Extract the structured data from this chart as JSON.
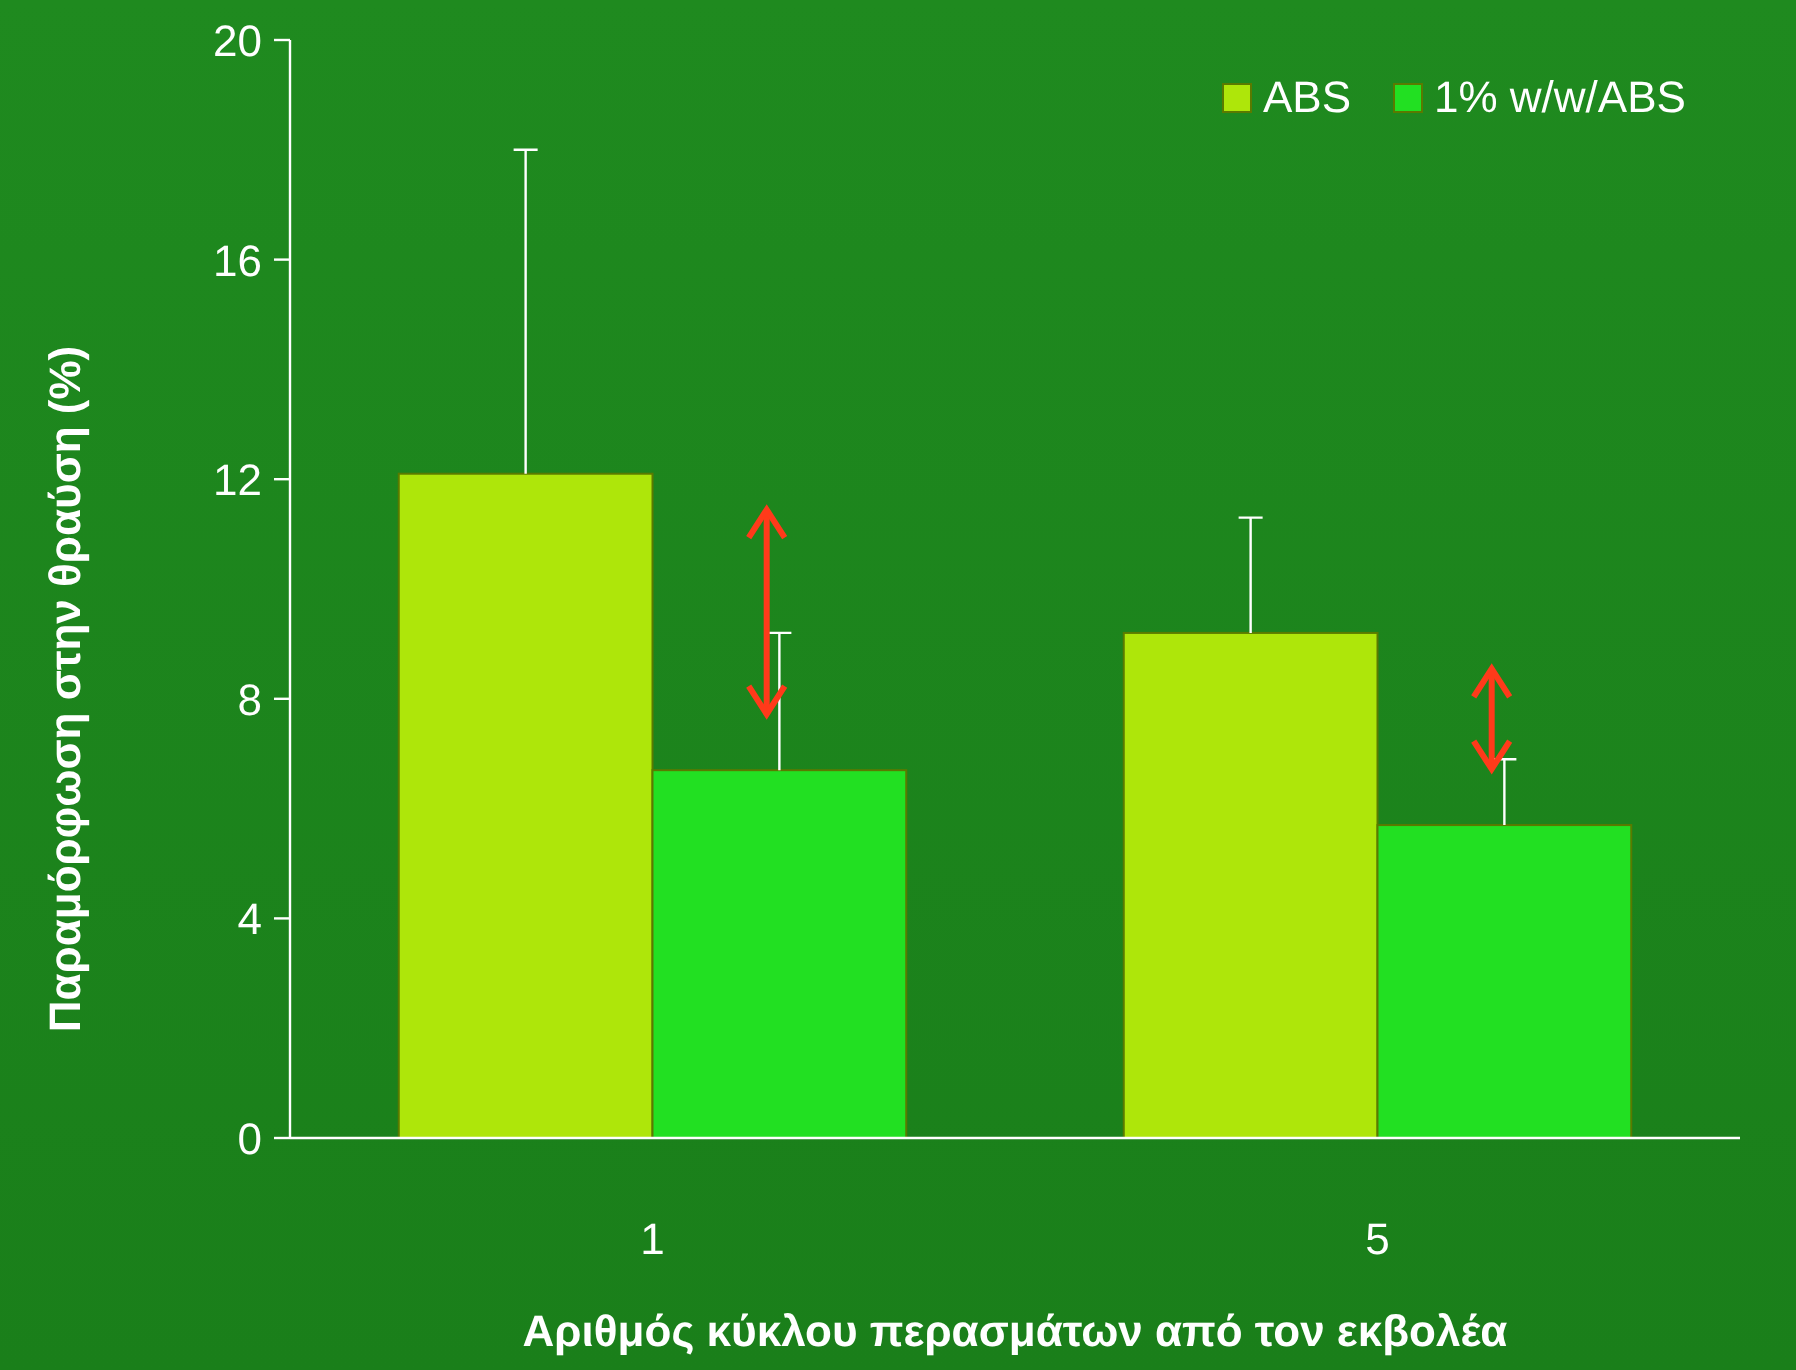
{
  "chart_data": {
    "type": "bar",
    "xlabel": "Αριθμός κύκλου περασμάτων από τον εκβολέα",
    "ylabel": "Παραμόρφωση στην θραύση (%)",
    "categories": [
      "1",
      "5"
    ],
    "series": [
      {
        "name": "ABS",
        "color": "#aee60a",
        "values": [
          12.1,
          9.2
        ],
        "errors": [
          [
            12.1,
            18
          ],
          [
            9.2,
            11.3
          ]
        ]
      },
      {
        "name": "1% w/w/ABS",
        "color": "#22e022",
        "values": [
          6.7,
          5.7
        ],
        "errors": [
          [
            6.7,
            9.2
          ],
          [
            5.7,
            6.9
          ]
        ]
      }
    ],
    "ylim": [
      0,
      20
    ],
    "yticks": [
      0,
      4,
      8,
      12,
      16,
      20
    ],
    "grid": false,
    "legend": "top right"
  }
}
